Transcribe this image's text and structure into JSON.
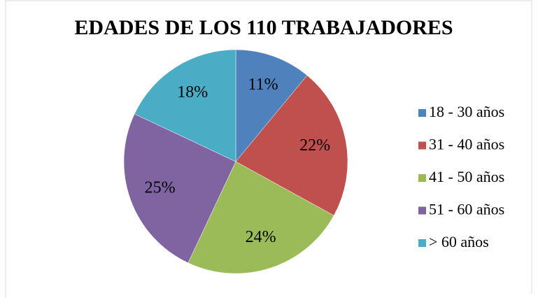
{
  "chart_data": {
    "type": "pie",
    "title": "EDADES DE LOS 110 TRABAJADORES",
    "categories": [
      "18 - 30 años",
      "31 - 40 años",
      "41 - 50 años",
      "51 - 60 años",
      "> 60 años"
    ],
    "values": [
      11,
      22,
      24,
      25,
      18
    ],
    "value_labels": [
      "11%",
      "22%",
      "24%",
      "25%",
      "18%"
    ],
    "colors": [
      "#4f81bd",
      "#c0504d",
      "#9bbb59",
      "#8064a2",
      "#4bacc6"
    ],
    "legend": "right"
  }
}
